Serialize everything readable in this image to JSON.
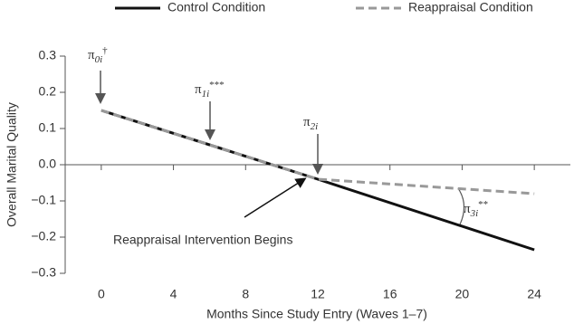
{
  "chart_data": {
    "type": "line",
    "x_label": "Months Since Study Entry (Waves 1–7)",
    "y_label": "Overall Marital Quality",
    "x": [
      0,
      12,
      24
    ],
    "series": [
      {
        "name": "Control Condition",
        "color": "#111111",
        "dash": false,
        "values": [
          0.15,
          -0.04,
          -0.235
        ]
      },
      {
        "name": "Reappraisal Condition",
        "color": "#999999",
        "dash": true,
        "values": [
          0.15,
          -0.04,
          -0.08
        ]
      }
    ],
    "xlim": [
      -2,
      26
    ],
    "xticks": [
      0,
      4,
      8,
      12,
      16,
      20,
      24
    ],
    "ylim": [
      -0.3,
      0.3
    ],
    "yticks": [
      0.3,
      0.2,
      0.1,
      {
        "value": 0,
        "label": "0.0"
      },
      {
        "value": -0.1,
        "label": "−0.1"
      },
      {
        "value": -0.2,
        "label": "−0.2"
      },
      {
        "value": -0.3,
        "label": "−0.3"
      }
    ],
    "annotations": [
      {
        "symbol": "π",
        "subscript": "0i",
        "superscript": "†"
      },
      {
        "symbol": "π",
        "subscript": "1i",
        "superscript": "***"
      },
      {
        "symbol": "π",
        "subscript": "2i"
      },
      {
        "symbol": "π",
        "subscript": "3i",
        "superscript": "**"
      }
    ],
    "intervention_label": "Reappraisal Intervention Begins"
  }
}
